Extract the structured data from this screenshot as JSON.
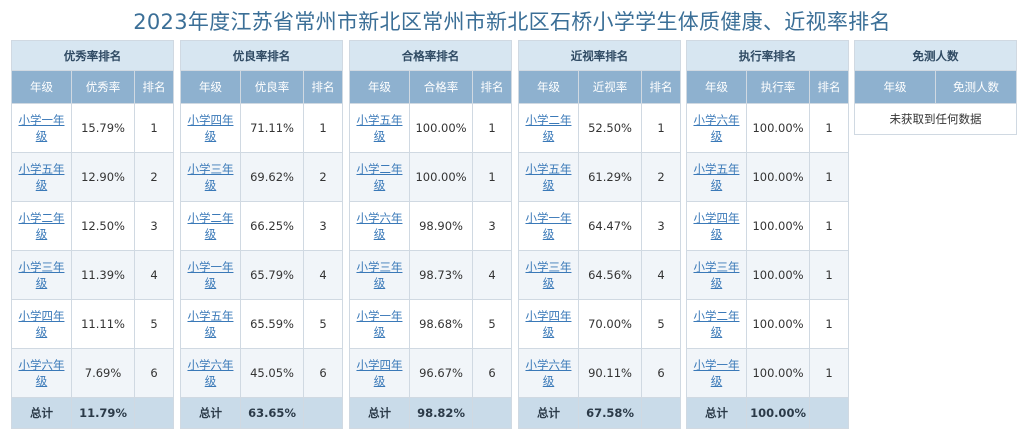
{
  "page_title": "2023年度江苏省常州市新北区常州市新北区石桥小学学生体质健康、近视率排名",
  "panels": [
    {
      "title": "优秀率排名",
      "headers": [
        "年级",
        "优秀率",
        "排名"
      ],
      "rows": [
        {
          "grade": "小学一年级",
          "value": "15.79%",
          "rank": "1"
        },
        {
          "grade": "小学五年级",
          "value": "12.90%",
          "rank": "2"
        },
        {
          "grade": "小学二年级",
          "value": "12.50%",
          "rank": "3"
        },
        {
          "grade": "小学三年级",
          "value": "11.39%",
          "rank": "4"
        },
        {
          "grade": "小学四年级",
          "value": "11.11%",
          "rank": "5"
        },
        {
          "grade": "小学六年级",
          "value": "7.69%",
          "rank": "6"
        }
      ],
      "total_label": "总计",
      "total_value": "11.79%"
    },
    {
      "title": "优良率排名",
      "headers": [
        "年级",
        "优良率",
        "排名"
      ],
      "rows": [
        {
          "grade": "小学四年级",
          "value": "71.11%",
          "rank": "1"
        },
        {
          "grade": "小学三年级",
          "value": "69.62%",
          "rank": "2"
        },
        {
          "grade": "小学二年级",
          "value": "66.25%",
          "rank": "3"
        },
        {
          "grade": "小学一年级",
          "value": "65.79%",
          "rank": "4"
        },
        {
          "grade": "小学五年级",
          "value": "65.59%",
          "rank": "5"
        },
        {
          "grade": "小学六年级",
          "value": "45.05%",
          "rank": "6"
        }
      ],
      "total_label": "总计",
      "total_value": "63.65%"
    },
    {
      "title": "合格率排名",
      "headers": [
        "年级",
        "合格率",
        "排名"
      ],
      "rows": [
        {
          "grade": "小学五年级",
          "value": "100.00%",
          "rank": "1"
        },
        {
          "grade": "小学二年级",
          "value": "100.00%",
          "rank": "1"
        },
        {
          "grade": "小学六年级",
          "value": "98.90%",
          "rank": "3"
        },
        {
          "grade": "小学三年级",
          "value": "98.73%",
          "rank": "4"
        },
        {
          "grade": "小学一年级",
          "value": "98.68%",
          "rank": "5"
        },
        {
          "grade": "小学四年级",
          "value": "96.67%",
          "rank": "6"
        }
      ],
      "total_label": "总计",
      "total_value": "98.82%"
    },
    {
      "title": "近视率排名",
      "headers": [
        "年级",
        "近视率",
        "排名"
      ],
      "rows": [
        {
          "grade": "小学二年级",
          "value": "52.50%",
          "rank": "1"
        },
        {
          "grade": "小学五年级",
          "value": "61.29%",
          "rank": "2"
        },
        {
          "grade": "小学一年级",
          "value": "64.47%",
          "rank": "3"
        },
        {
          "grade": "小学三年级",
          "value": "64.56%",
          "rank": "4"
        },
        {
          "grade": "小学四年级",
          "value": "70.00%",
          "rank": "5"
        },
        {
          "grade": "小学六年级",
          "value": "90.11%",
          "rank": "6"
        }
      ],
      "total_label": "总计",
      "total_value": "67.58%"
    },
    {
      "title": "执行率排名",
      "headers": [
        "年级",
        "执行率",
        "排名"
      ],
      "rows": [
        {
          "grade": "小学六年级",
          "value": "100.00%",
          "rank": "1"
        },
        {
          "grade": "小学五年级",
          "value": "100.00%",
          "rank": "1"
        },
        {
          "grade": "小学四年级",
          "value": "100.00%",
          "rank": "1"
        },
        {
          "grade": "小学三年级",
          "value": "100.00%",
          "rank": "1"
        },
        {
          "grade": "小学二年级",
          "value": "100.00%",
          "rank": "1"
        },
        {
          "grade": "小学一年级",
          "value": "100.00%",
          "rank": "1"
        }
      ],
      "total_label": "总计",
      "total_value": "100.00%"
    }
  ],
  "exempt_panel": {
    "title": "免测人数",
    "headers": [
      "年级",
      "免测人数"
    ],
    "empty_message": "未获取到任何数据"
  }
}
